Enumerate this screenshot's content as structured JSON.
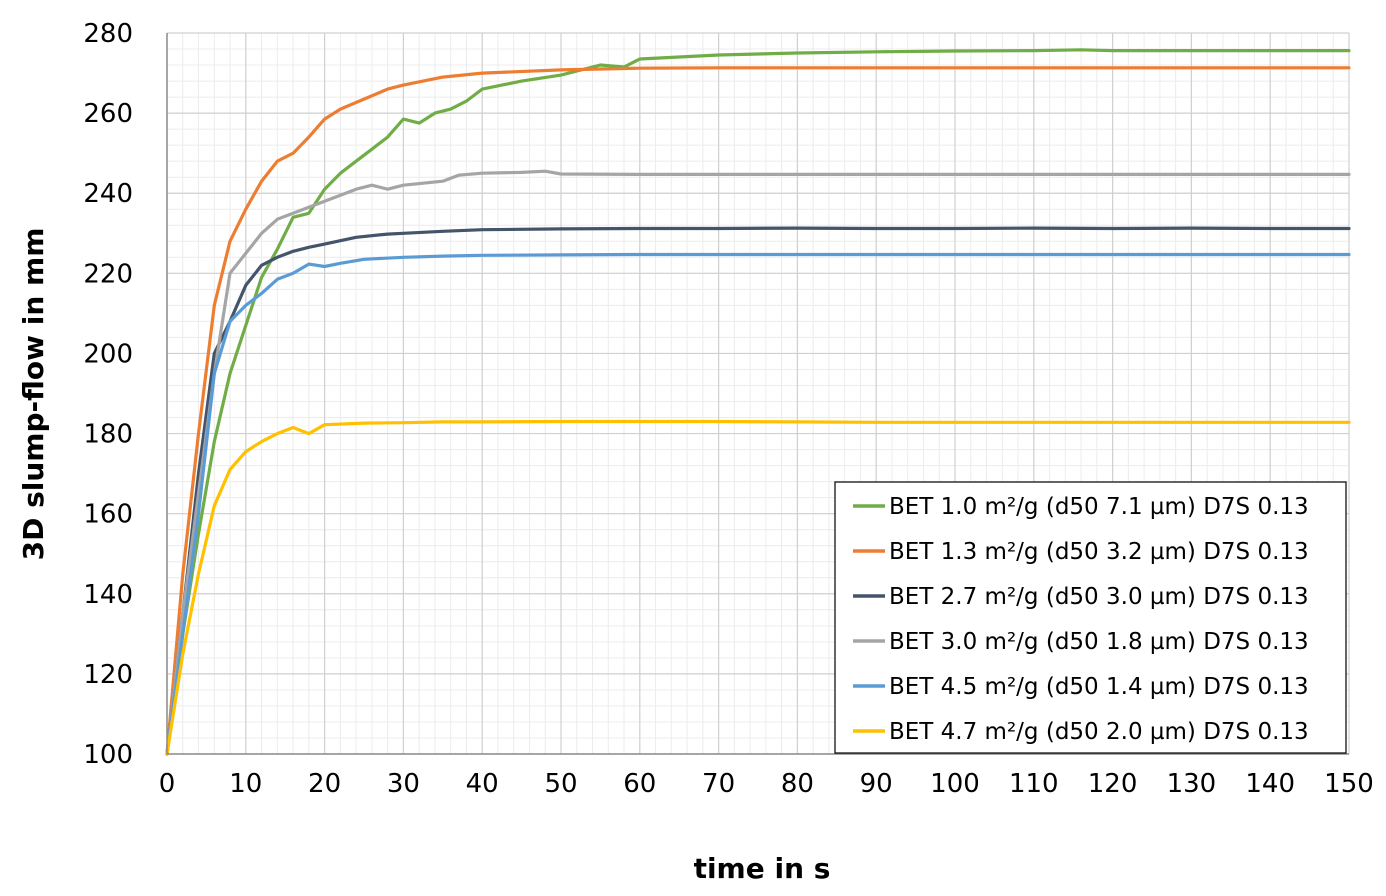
{
  "chart_data": {
    "type": "line",
    "title": "",
    "xlabel": "time in s",
    "ylabel": "3D slump-flow in mm",
    "xlim": [
      0,
      150
    ],
    "ylim": [
      100,
      280
    ],
    "xticks": [
      0,
      10,
      20,
      30,
      40,
      50,
      60,
      70,
      80,
      90,
      100,
      110,
      120,
      130,
      140,
      150
    ],
    "yticks": [
      100,
      120,
      140,
      160,
      180,
      200,
      220,
      240,
      260,
      280
    ],
    "grid": true,
    "legend_position": "bottom-right",
    "series": [
      {
        "name": "BET 1.0 m²/g (d50 7.1 µm) D7S 0.13",
        "color": "#70ad47",
        "points": [
          [
            0,
            100
          ],
          [
            2,
            130
          ],
          [
            4,
            155
          ],
          [
            6,
            178
          ],
          [
            8,
            195
          ],
          [
            10,
            207
          ],
          [
            12,
            219
          ],
          [
            14,
            226
          ],
          [
            16,
            234
          ],
          [
            18,
            235
          ],
          [
            20,
            241
          ],
          [
            22,
            245
          ],
          [
            24,
            248
          ],
          [
            26,
            251
          ],
          [
            28,
            254
          ],
          [
            30,
            258.5
          ],
          [
            32,
            257.5
          ],
          [
            34,
            260
          ],
          [
            36,
            261
          ],
          [
            38,
            263
          ],
          [
            40,
            266
          ],
          [
            45,
            268
          ],
          [
            50,
            269.5
          ],
          [
            55,
            272
          ],
          [
            58,
            271.5
          ],
          [
            60,
            273.5
          ],
          [
            70,
            274.5
          ],
          [
            80,
            275
          ],
          [
            90,
            275.3
          ],
          [
            100,
            275.5
          ],
          [
            110,
            275.6
          ],
          [
            116,
            275.8
          ],
          [
            120,
            275.6
          ],
          [
            130,
            275.6
          ],
          [
            140,
            275.6
          ],
          [
            150,
            275.6
          ]
        ]
      },
      {
        "name": "BET 1.3 m²/g (d50 3.2 µm) D7S 0.13",
        "color": "#ed7d31",
        "points": [
          [
            0,
            100
          ],
          [
            2,
            145
          ],
          [
            4,
            180
          ],
          [
            6,
            212
          ],
          [
            8,
            228
          ],
          [
            10,
            236
          ],
          [
            12,
            243
          ],
          [
            14,
            248
          ],
          [
            16,
            250
          ],
          [
            18,
            254
          ],
          [
            20,
            258.5
          ],
          [
            22,
            261
          ],
          [
            25,
            263.5
          ],
          [
            28,
            266
          ],
          [
            30,
            267
          ],
          [
            35,
            269
          ],
          [
            40,
            270
          ],
          [
            50,
            270.8
          ],
          [
            60,
            271.2
          ],
          [
            70,
            271.3
          ],
          [
            80,
            271.3
          ],
          [
            90,
            271.3
          ],
          [
            100,
            271.3
          ],
          [
            110,
            271.3
          ],
          [
            120,
            271.3
          ],
          [
            130,
            271.3
          ],
          [
            140,
            271.3
          ],
          [
            150,
            271.3
          ]
        ]
      },
      {
        "name": "BET 2.7 m²/g (d50 3.0 µm) D7S 0.13",
        "color": "#44546a",
        "points": [
          [
            0,
            100
          ],
          [
            2,
            135
          ],
          [
            4,
            170
          ],
          [
            6,
            200
          ],
          [
            8,
            208
          ],
          [
            10,
            217
          ],
          [
            12,
            222
          ],
          [
            14,
            224
          ],
          [
            16,
            225.5
          ],
          [
            18,
            226.5
          ],
          [
            20,
            227.3
          ],
          [
            24,
            229
          ],
          [
            28,
            229.8
          ],
          [
            30,
            230
          ],
          [
            35,
            230.5
          ],
          [
            40,
            230.9
          ],
          [
            50,
            231.1
          ],
          [
            60,
            231.2
          ],
          [
            70,
            231.2
          ],
          [
            80,
            231.3
          ],
          [
            90,
            231.2
          ],
          [
            100,
            231.2
          ],
          [
            110,
            231.3
          ],
          [
            120,
            231.2
          ],
          [
            130,
            231.3
          ],
          [
            140,
            231.2
          ],
          [
            150,
            231.2
          ]
        ]
      },
      {
        "name": "BET 3.0 m²/g (d50 1.8 µm) D7S 0.13",
        "color": "#a5a5a5",
        "points": [
          [
            0,
            100
          ],
          [
            2,
            135
          ],
          [
            4,
            165
          ],
          [
            6,
            195
          ],
          [
            8,
            220
          ],
          [
            10,
            225
          ],
          [
            12,
            230
          ],
          [
            14,
            233.5
          ],
          [
            16,
            235
          ],
          [
            18,
            236.5
          ],
          [
            20,
            238
          ],
          [
            22,
            239.5
          ],
          [
            24,
            241
          ],
          [
            26,
            242
          ],
          [
            28,
            241
          ],
          [
            30,
            242
          ],
          [
            35,
            243
          ],
          [
            37,
            244.5
          ],
          [
            40,
            245
          ],
          [
            45,
            245.2
          ],
          [
            48,
            245.5
          ],
          [
            50,
            244.8
          ],
          [
            60,
            244.7
          ],
          [
            70,
            244.7
          ],
          [
            80,
            244.7
          ],
          [
            90,
            244.7
          ],
          [
            100,
            244.7
          ],
          [
            110,
            244.7
          ],
          [
            120,
            244.7
          ],
          [
            130,
            244.7
          ],
          [
            140,
            244.7
          ],
          [
            150,
            244.7
          ]
        ]
      },
      {
        "name": "BET 4.5 m²/g (d50 1.4 µm) D7S 0.13",
        "color": "#5b9bd5",
        "points": [
          [
            0,
            100
          ],
          [
            2,
            130
          ],
          [
            4,
            160
          ],
          [
            6,
            195
          ],
          [
            8,
            208
          ],
          [
            10,
            212
          ],
          [
            12,
            215
          ],
          [
            14,
            218.5
          ],
          [
            16,
            220
          ],
          [
            18,
            222.3
          ],
          [
            20,
            221.7
          ],
          [
            22,
            222.5
          ],
          [
            25,
            223.5
          ],
          [
            30,
            224
          ],
          [
            35,
            224.3
          ],
          [
            40,
            224.5
          ],
          [
            50,
            224.6
          ],
          [
            60,
            224.7
          ],
          [
            70,
            224.7
          ],
          [
            80,
            224.7
          ],
          [
            90,
            224.7
          ],
          [
            100,
            224.7
          ],
          [
            110,
            224.7
          ],
          [
            120,
            224.7
          ],
          [
            130,
            224.7
          ],
          [
            140,
            224.7
          ],
          [
            150,
            224.7
          ]
        ]
      },
      {
        "name": "BET 4.7 m²/g (d50 2.0 µm) D7S 0.13",
        "color": "#ffc000",
        "points": [
          [
            0,
            100
          ],
          [
            2,
            125
          ],
          [
            4,
            145
          ],
          [
            6,
            162
          ],
          [
            8,
            171
          ],
          [
            10,
            175.5
          ],
          [
            12,
            178
          ],
          [
            14,
            180
          ],
          [
            16,
            181.5
          ],
          [
            18,
            180
          ],
          [
            20,
            182.2
          ],
          [
            25,
            182.6
          ],
          [
            30,
            182.7
          ],
          [
            35,
            182.9
          ],
          [
            40,
            182.9
          ],
          [
            50,
            183
          ],
          [
            60,
            183
          ],
          [
            70,
            183
          ],
          [
            80,
            182.9
          ],
          [
            90,
            182.8
          ],
          [
            100,
            182.8
          ],
          [
            110,
            182.8
          ],
          [
            120,
            182.8
          ],
          [
            130,
            182.8
          ],
          [
            140,
            182.8
          ],
          [
            150,
            182.8
          ]
        ]
      }
    ]
  }
}
